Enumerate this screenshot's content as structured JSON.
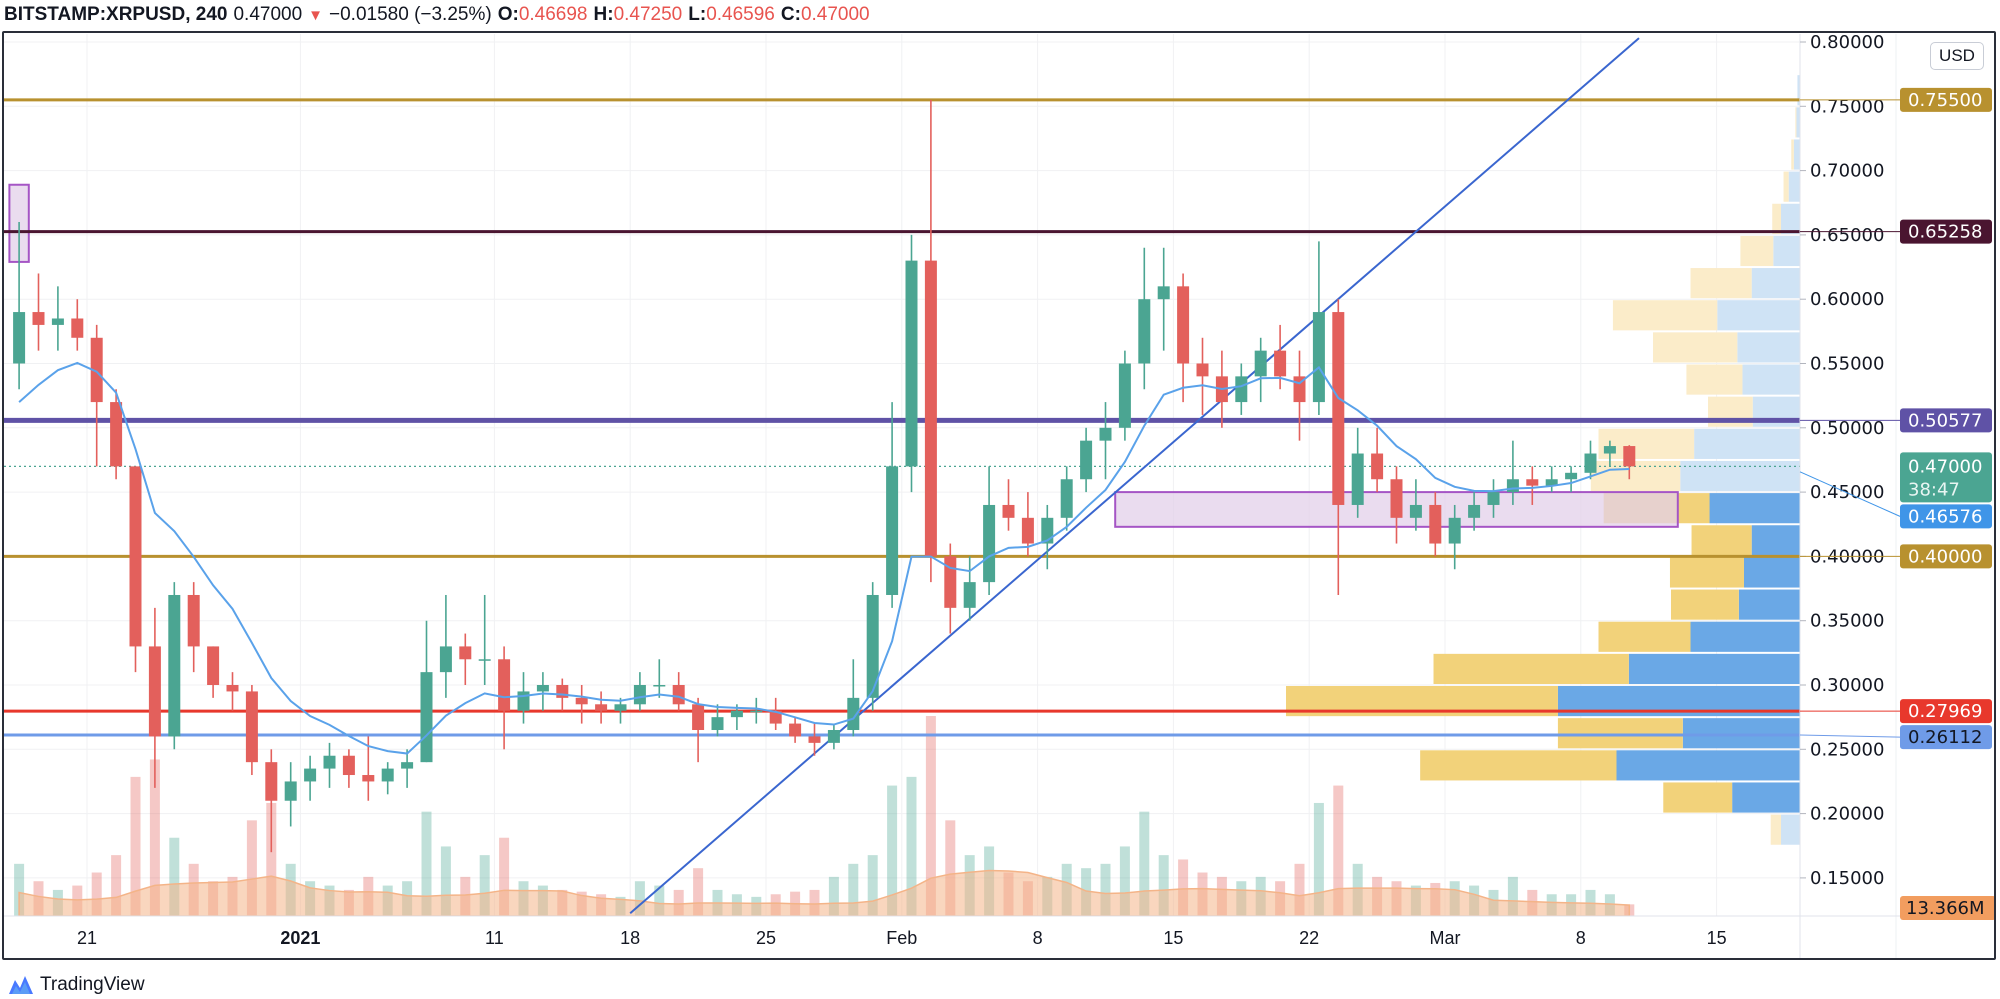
{
  "header": {
    "symbol": "BITSTAMP:XRPUSD, 240",
    "last": "0.47000",
    "direction_icon": "triangle-down-icon",
    "change": "−0.01580 (−3.25%)",
    "open_label": "O:",
    "open": "0.46698",
    "high_label": "H:",
    "high": "0.47250",
    "low_label": "L:",
    "low": "0.46596",
    "close_label": "C:",
    "close": "0.47000"
  },
  "price_axis": {
    "currency": "USD"
  },
  "footer": {
    "brand": "TradingView",
    "logo_icon": "tradingview-logo-icon"
  },
  "colors": {
    "up": "#4ba592",
    "down": "#e3605c",
    "ma": "#5aa2ea",
    "volume_ma": "#f4b488",
    "trendline": "#3a66cf",
    "vp_up_solid": "#f2d27a",
    "vp_down_solid": "#6aa8e6",
    "vp_up_light": "#fbecc9",
    "vp_down_light": "#cfe3f5",
    "zone_fill": "#e3d0ea",
    "zone_border": "#a555c5"
  },
  "chart_data": {
    "type": "candlestick",
    "title": "BITSTAMP:XRPUSD, 240",
    "ylim": [
      0.12,
      0.8
    ],
    "y_ticks": [
      "0.80000",
      "0.75000",
      "0.70000",
      "0.65000",
      "0.60000",
      "0.55000",
      "0.50000",
      "0.45000",
      "0.40000",
      "0.35000",
      "0.30000",
      "0.25000",
      "0.20000",
      "0.15000"
    ],
    "x_ticks": [
      {
        "label": "21",
        "date": "2020-12-21"
      },
      {
        "label": "2021",
        "date": "2021-01-01"
      },
      {
        "label": "11",
        "date": "2021-01-11"
      },
      {
        "label": "18",
        "date": "2021-01-18"
      },
      {
        "label": "25",
        "date": "2021-01-25"
      },
      {
        "label": "Feb",
        "date": "2021-02-01"
      },
      {
        "label": "8",
        "date": "2021-02-08"
      },
      {
        "label": "15",
        "date": "2021-02-15"
      },
      {
        "label": "22",
        "date": "2021-02-22"
      },
      {
        "label": "Mar",
        "date": "2021-03-01"
      },
      {
        "label": "8",
        "date": "2021-03-08"
      },
      {
        "label": "15",
        "date": "2021-03-15"
      }
    ],
    "grid": true,
    "dates": [
      "2020-12-17",
      "2020-12-18",
      "2020-12-19",
      "2020-12-20",
      "2020-12-21",
      "2020-12-22",
      "2020-12-23",
      "2020-12-24",
      "2020-12-25",
      "2020-12-26",
      "2020-12-27",
      "2020-12-28",
      "2020-12-29",
      "2020-12-30",
      "2020-12-31",
      "2021-01-01",
      "2021-01-02",
      "2021-01-03",
      "2021-01-04",
      "2021-01-05",
      "2021-01-06",
      "2021-01-07",
      "2021-01-08",
      "2021-01-09",
      "2021-01-10",
      "2021-01-11",
      "2021-01-12",
      "2021-01-13",
      "2021-01-14",
      "2021-01-15",
      "2021-01-16",
      "2021-01-17",
      "2021-01-18",
      "2021-01-19",
      "2021-01-20",
      "2021-01-21",
      "2021-01-22",
      "2021-01-23",
      "2021-01-24",
      "2021-01-25",
      "2021-01-26",
      "2021-01-27",
      "2021-01-28",
      "2021-01-29",
      "2021-01-30",
      "2021-01-31",
      "2021-02-01",
      "2021-02-02",
      "2021-02-03",
      "2021-02-04",
      "2021-02-05",
      "2021-02-06",
      "2021-02-07",
      "2021-02-08",
      "2021-02-09",
      "2021-02-10",
      "2021-02-11",
      "2021-02-12",
      "2021-02-13",
      "2021-02-14",
      "2021-02-15",
      "2021-02-16",
      "2021-02-17",
      "2021-02-18",
      "2021-02-19",
      "2021-02-20",
      "2021-02-21",
      "2021-02-22",
      "2021-02-23",
      "2021-02-24",
      "2021-02-25",
      "2021-02-26",
      "2021-02-27",
      "2021-02-28",
      "2021-03-01",
      "2021-03-02",
      "2021-03-03",
      "2021-03-04",
      "2021-03-05",
      "2021-03-06",
      "2021-03-07",
      "2021-03-08",
      "2021-03-09",
      "2021-03-10"
    ],
    "ohlc": [
      [
        0.55,
        0.66,
        0.53,
        0.59
      ],
      [
        0.59,
        0.62,
        0.56,
        0.58
      ],
      [
        0.58,
        0.61,
        0.56,
        0.585
      ],
      [
        0.585,
        0.6,
        0.56,
        0.57
      ],
      [
        0.57,
        0.58,
        0.47,
        0.52
      ],
      [
        0.52,
        0.53,
        0.46,
        0.47
      ],
      [
        0.47,
        0.47,
        0.31,
        0.33
      ],
      [
        0.33,
        0.36,
        0.22,
        0.26
      ],
      [
        0.26,
        0.38,
        0.25,
        0.37
      ],
      [
        0.37,
        0.38,
        0.31,
        0.33
      ],
      [
        0.33,
        0.33,
        0.29,
        0.3
      ],
      [
        0.3,
        0.31,
        0.28,
        0.295
      ],
      [
        0.295,
        0.3,
        0.23,
        0.24
      ],
      [
        0.24,
        0.25,
        0.17,
        0.21
      ],
      [
        0.21,
        0.24,
        0.19,
        0.225
      ],
      [
        0.225,
        0.245,
        0.21,
        0.235
      ],
      [
        0.235,
        0.255,
        0.22,
        0.245
      ],
      [
        0.245,
        0.25,
        0.22,
        0.23
      ],
      [
        0.23,
        0.26,
        0.21,
        0.225
      ],
      [
        0.225,
        0.24,
        0.215,
        0.235
      ],
      [
        0.235,
        0.25,
        0.22,
        0.24
      ],
      [
        0.24,
        0.35,
        0.24,
        0.31
      ],
      [
        0.31,
        0.37,
        0.29,
        0.33
      ],
      [
        0.33,
        0.34,
        0.3,
        0.32
      ],
      [
        0.32,
        0.37,
        0.3,
        0.32
      ],
      [
        0.32,
        0.33,
        0.25,
        0.28
      ],
      [
        0.28,
        0.31,
        0.27,
        0.295
      ],
      [
        0.295,
        0.31,
        0.28,
        0.3
      ],
      [
        0.3,
        0.305,
        0.28,
        0.29
      ],
      [
        0.29,
        0.3,
        0.27,
        0.285
      ],
      [
        0.285,
        0.295,
        0.27,
        0.28
      ],
      [
        0.28,
        0.29,
        0.27,
        0.285
      ],
      [
        0.285,
        0.31,
        0.28,
        0.3
      ],
      [
        0.3,
        0.32,
        0.29,
        0.3
      ],
      [
        0.3,
        0.31,
        0.28,
        0.285
      ],
      [
        0.285,
        0.29,
        0.24,
        0.265
      ],
      [
        0.265,
        0.285,
        0.26,
        0.275
      ],
      [
        0.275,
        0.285,
        0.265,
        0.28
      ],
      [
        0.28,
        0.29,
        0.27,
        0.28
      ],
      [
        0.28,
        0.29,
        0.265,
        0.27
      ],
      [
        0.27,
        0.275,
        0.255,
        0.26
      ],
      [
        0.26,
        0.27,
        0.245,
        0.255
      ],
      [
        0.255,
        0.27,
        0.25,
        0.265
      ],
      [
        0.265,
        0.32,
        0.26,
        0.29
      ],
      [
        0.29,
        0.38,
        0.28,
        0.37
      ],
      [
        0.37,
        0.52,
        0.36,
        0.47
      ],
      [
        0.47,
        0.65,
        0.45,
        0.63
      ],
      [
        0.63,
        0.755,
        0.38,
        0.4
      ],
      [
        0.4,
        0.41,
        0.34,
        0.36
      ],
      [
        0.36,
        0.4,
        0.35,
        0.38
      ],
      [
        0.38,
        0.47,
        0.37,
        0.44
      ],
      [
        0.44,
        0.46,
        0.42,
        0.43
      ],
      [
        0.43,
        0.45,
        0.4,
        0.41
      ],
      [
        0.41,
        0.44,
        0.39,
        0.43
      ],
      [
        0.43,
        0.47,
        0.42,
        0.46
      ],
      [
        0.46,
        0.5,
        0.45,
        0.49
      ],
      [
        0.49,
        0.52,
        0.46,
        0.5
      ],
      [
        0.5,
        0.56,
        0.49,
        0.55
      ],
      [
        0.55,
        0.64,
        0.53,
        0.6
      ],
      [
        0.6,
        0.64,
        0.56,
        0.61
      ],
      [
        0.61,
        0.62,
        0.52,
        0.55
      ],
      [
        0.55,
        0.57,
        0.51,
        0.54
      ],
      [
        0.54,
        0.56,
        0.5,
        0.52
      ],
      [
        0.52,
        0.55,
        0.51,
        0.54
      ],
      [
        0.54,
        0.57,
        0.52,
        0.56
      ],
      [
        0.56,
        0.58,
        0.53,
        0.54
      ],
      [
        0.54,
        0.56,
        0.49,
        0.52
      ],
      [
        0.52,
        0.645,
        0.51,
        0.59
      ],
      [
        0.59,
        0.6,
        0.37,
        0.44
      ],
      [
        0.44,
        0.5,
        0.43,
        0.48
      ],
      [
        0.48,
        0.5,
        0.45,
        0.46
      ],
      [
        0.46,
        0.47,
        0.41,
        0.43
      ],
      [
        0.43,
        0.46,
        0.42,
        0.44
      ],
      [
        0.44,
        0.45,
        0.4,
        0.41
      ],
      [
        0.41,
        0.44,
        0.39,
        0.43
      ],
      [
        0.43,
        0.45,
        0.42,
        0.44
      ],
      [
        0.44,
        0.46,
        0.43,
        0.45
      ],
      [
        0.45,
        0.49,
        0.44,
        0.46
      ],
      [
        0.46,
        0.47,
        0.44,
        0.455
      ],
      [
        0.455,
        0.47,
        0.45,
        0.46
      ],
      [
        0.46,
        0.47,
        0.45,
        0.465
      ],
      [
        0.465,
        0.49,
        0.46,
        0.48
      ],
      [
        0.48,
        0.49,
        0.47,
        0.4858
      ],
      [
        0.4858,
        0.4865,
        0.46,
        0.47
      ]
    ],
    "volume": [
      60,
      40,
      30,
      35,
      50,
      70,
      160,
      180,
      90,
      60,
      40,
      45,
      110,
      130,
      60,
      40,
      35,
      30,
      45,
      35,
      40,
      120,
      80,
      45,
      70,
      90,
      40,
      35,
      30,
      28,
      25,
      22,
      40,
      35,
      30,
      55,
      30,
      25,
      22,
      25,
      28,
      30,
      45,
      60,
      70,
      150,
      160,
      230,
      110,
      70,
      80,
      50,
      40,
      45,
      60,
      55,
      60,
      80,
      120,
      70,
      65,
      50,
      45,
      40,
      45,
      40,
      60,
      130,
      150,
      60,
      45,
      40,
      35,
      38,
      40,
      35,
      30,
      45,
      30,
      25,
      25,
      30,
      25,
      13.4
    ],
    "volume_last_label": "13.366M",
    "current_price": {
      "label": "0.47000",
      "countdown": "38:47",
      "color": "#4ba592"
    },
    "horizontal_levels": [
      {
        "price": 0.755,
        "label": "0.75500",
        "color": "#b8912f",
        "text_color": "#ffffff"
      },
      {
        "price": 0.65258,
        "label": "0.65258",
        "color": "#4a1530",
        "text_color": "#ffffff"
      },
      {
        "price": 0.50577,
        "label": "0.50577",
        "color": "#5f52a6",
        "text_color": "#ffffff"
      },
      {
        "price": 0.46576,
        "label": "0.46576",
        "color": "#3f95e8",
        "text_color": "#ffffff",
        "line": false
      },
      {
        "price": 0.4,
        "label": "0.40000",
        "color": "#b8912f",
        "text_color": "#ffffff"
      },
      {
        "price": 0.27969,
        "label": "0.27969",
        "color": "#e8382c",
        "text_color": "#ffffff"
      },
      {
        "price": 0.26112,
        "label": "0.26112",
        "color": "#6f9be8",
        "text_color": "#131722"
      }
    ],
    "zones": [
      {
        "from": "2020-12-17",
        "to": "2020-12-18",
        "top": 0.689,
        "bottom": 0.629
      },
      {
        "from": "2021-02-12",
        "to": "2021-03-13",
        "top": 0.45,
        "bottom": 0.423
      }
    ],
    "trendline": {
      "from": [
        "2021-01-18",
        0.1225
      ],
      "to": [
        "2021-03-11",
        0.803
      ]
    },
    "volume_profile": {
      "bin_size": 0.025,
      "bins": [
        {
          "low": 0.175,
          "down": 3.7,
          "up": 2.0,
          "value_area": false
        },
        {
          "low": 0.2,
          "down": 13.2,
          "up": 13.4,
          "value_area": true
        },
        {
          "low": 0.225,
          "down": 35.7,
          "up": 38.2,
          "value_area": true
        },
        {
          "low": 0.25,
          "down": 22.8,
          "up": 24.3,
          "value_area": true
        },
        {
          "low": 0.275,
          "down": 47.1,
          "up": 52.9,
          "value_area": true
        },
        {
          "low": 0.3,
          "down": 33.3,
          "up": 38.0,
          "value_area": true
        },
        {
          "low": 0.325,
          "down": 21.3,
          "up": 17.9,
          "value_area": true
        },
        {
          "low": 0.35,
          "down": 11.9,
          "up": 13.2,
          "value_area": true
        },
        {
          "low": 0.375,
          "down": 10.9,
          "up": 14.4,
          "value_area": true
        },
        {
          "low": 0.4,
          "down": 9.4,
          "up": 11.7,
          "value_area": true
        },
        {
          "low": 0.425,
          "down": 17.6,
          "up": 20.6,
          "value_area": true
        },
        {
          "low": 0.45,
          "down": 23.3,
          "up": 17.4,
          "value_area": false
        },
        {
          "low": 0.475,
          "down": 20.6,
          "up": 18.6,
          "value_area": false
        },
        {
          "low": 0.5,
          "down": 9.2,
          "up": 8.7,
          "value_area": false
        },
        {
          "low": 0.525,
          "down": 11.2,
          "up": 10.9,
          "value_area": false
        },
        {
          "low": 0.55,
          "down": 12.2,
          "up": 16.4,
          "value_area": false
        },
        {
          "low": 0.575,
          "down": 16.1,
          "up": 20.3,
          "value_area": false
        },
        {
          "low": 0.6,
          "down": 9.4,
          "up": 11.9,
          "value_area": false
        },
        {
          "low": 0.625,
          "down": 5.2,
          "up": 6.4,
          "value_area": false
        },
        {
          "low": 0.65,
          "down": 3.7,
          "up": 1.7,
          "value_area": false
        },
        {
          "low": 0.675,
          "down": 2.2,
          "up": 1.0,
          "value_area": false
        },
        {
          "low": 0.7,
          "down": 1.2,
          "up": 0.5,
          "value_area": false
        },
        {
          "low": 0.725,
          "down": 0.7,
          "up": 0.2,
          "value_area": false
        },
        {
          "low": 0.75,
          "down": 0.5,
          "up": 0.0,
          "value_area": false
        }
      ]
    }
  }
}
